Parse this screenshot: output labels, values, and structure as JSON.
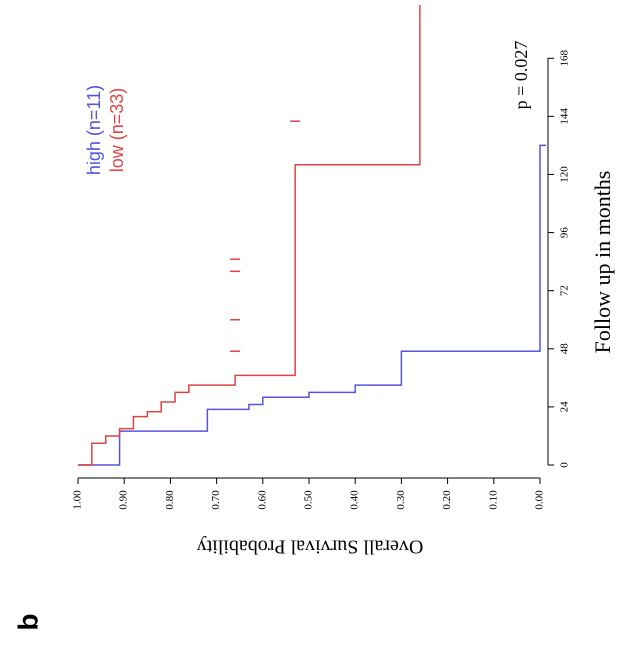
{
  "panel_label": "b",
  "chart_data": {
    "type": "step",
    "x_label": "Follow up in months",
    "y_label": "Overall Survival Probability",
    "annotation": "p = 0.027",
    "xlim": [
      0,
      190
    ],
    "xticks": [
      0,
      24,
      48,
      72,
      96,
      120,
      144,
      168
    ],
    "ylim": [
      0,
      1
    ],
    "yticks": [
      {
        "value": 1,
        "label": "1.00"
      },
      {
        "value": 0.9,
        "label": "0.90"
      },
      {
        "value": 0.8,
        "label": "0.80"
      },
      {
        "value": 0.7,
        "label": "0.70"
      },
      {
        "value": 0.6,
        "label": "0.60"
      },
      {
        "value": 0.5,
        "label": "0.50"
      },
      {
        "value": 0.4,
        "label": "0.40"
      },
      {
        "value": 0.3,
        "label": "0.30"
      },
      {
        "value": 0.2,
        "label": "0.20"
      },
      {
        "value": 0.1,
        "label": "0.10"
      },
      {
        "value": 0,
        "label": "0.00"
      }
    ],
    "series": [
      {
        "name": "high (n=11)",
        "color": "#5555dd",
        "x": [
          0,
          14,
          23,
          25,
          28,
          30,
          33,
          47,
          132
        ],
        "values": [
          1,
          0.91,
          0.72,
          0.63,
          0.6,
          0.5,
          0.4,
          0.3,
          0
        ]
      },
      {
        "name": "low (n=33)",
        "color": "#dd4444",
        "x": [
          0,
          9,
          12,
          15,
          20,
          22,
          26,
          30,
          33,
          37,
          124,
          162
        ],
        "values": [
          1,
          0.97,
          0.94,
          0.91,
          0.88,
          0.85,
          0.82,
          0.79,
          0.76,
          0.66,
          0.53,
          0.26
        ],
        "censored_x": [
          47,
          60,
          80,
          85,
          142
        ],
        "censored_y": [
          0.66,
          0.66,
          0.66,
          0.66,
          0.53
        ]
      }
    ]
  }
}
